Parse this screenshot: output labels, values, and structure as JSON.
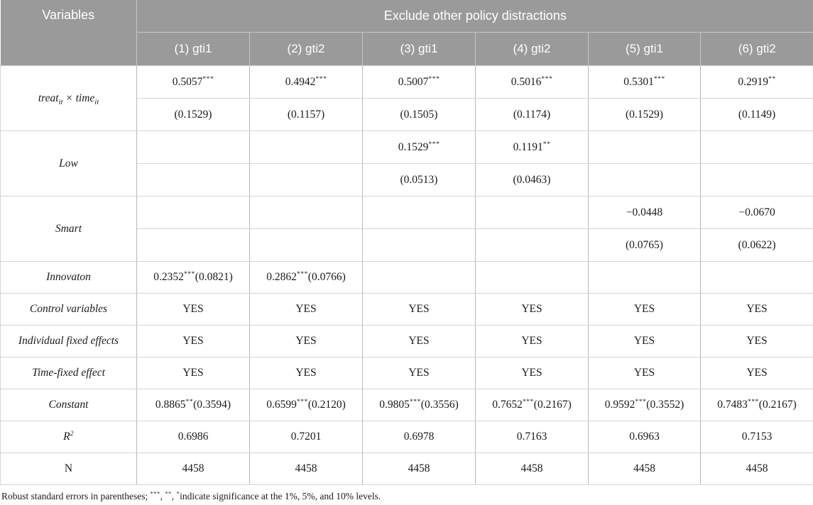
{
  "colors": {
    "header_bg": "#9a9a9a",
    "header_text": "#ffffff",
    "header_divider": "#c6c6c6",
    "row_divider": "#d4d4d4",
    "col_divider": "#b7b7b7",
    "body_text": "#1a1a1a"
  },
  "header": {
    "variables_label": "Variables",
    "group_label": "Exclude other policy distractions",
    "columns": [
      "(1) gti1",
      "(2) gti2",
      "(3) gti1",
      "(4) gti2",
      "(5) gti1",
      "(6) gti2"
    ]
  },
  "body": {
    "groups": [
      {
        "label": "treat~it~ × time~it~",
        "rows": [
          [
            "0.5057^***^",
            "0.4942^***^",
            "0.5007^***^",
            "0.5016^***^",
            "0.5301^***^",
            "0.2919^**^"
          ],
          [
            "(0.1529)",
            "(0.1157)",
            "(0.1505)",
            "(0.1174)",
            "(0.1529)",
            "(0.1149)"
          ]
        ]
      },
      {
        "label": "Low",
        "rows": [
          [
            "",
            "",
            "0.1529^***^",
            "0.1191^**^",
            "",
            ""
          ],
          [
            "",
            "",
            "(0.0513)",
            "(0.0463)",
            "",
            ""
          ]
        ]
      },
      {
        "label": "Smart",
        "rows": [
          [
            "",
            "",
            "",
            "",
            "−0.0448",
            "−0.0670"
          ],
          [
            "",
            "",
            "",
            "",
            "(0.0765)",
            "(0.0622)"
          ]
        ]
      },
      {
        "label": "Innovaton",
        "rows": [
          [
            "0.2352^***^(0.0821)",
            "0.2862^***^(0.0766)",
            "",
            "",
            "",
            ""
          ]
        ]
      },
      {
        "label": "Control variables",
        "rows": [
          [
            "YES",
            "YES",
            "YES",
            "YES",
            "YES",
            "YES"
          ]
        ]
      },
      {
        "label": "Individual fixed effects",
        "rows": [
          [
            "YES",
            "YES",
            "YES",
            "YES",
            "YES",
            "YES"
          ]
        ]
      },
      {
        "label": "Time-fixed effect",
        "rows": [
          [
            "YES",
            "YES",
            "YES",
            "YES",
            "YES",
            "YES"
          ]
        ]
      },
      {
        "label": "Constant",
        "rows": [
          [
            "0.8865^**^(0.3594)",
            "0.6599^***^(0.2120)",
            "0.9805^***^(0.3556)",
            "0.7652^***^(0.2167)",
            "0.9592^***^(0.3552)",
            "0.7483^***^(0.2167)"
          ]
        ]
      },
      {
        "label": "R^2^",
        "rows": [
          [
            "0.6986",
            "0.7201",
            "0.6978",
            "0.7163",
            "0.6963",
            "0.7153"
          ]
        ]
      },
      {
        "label": "N",
        "upright": true,
        "rows": [
          [
            "4458",
            "4458",
            "4458",
            "4458",
            "4458",
            "4458"
          ]
        ]
      }
    ]
  },
  "footnote": "Robust standard errors in parentheses; ^***^, ^**^, ^*^indicate significance at the 1%, 5%, and 10% levels."
}
